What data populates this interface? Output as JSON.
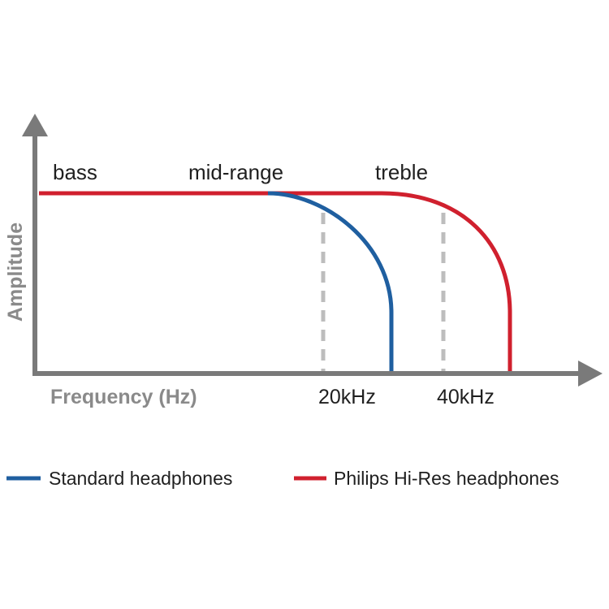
{
  "diagram": {
    "y_axis_label": "Amplitude",
    "x_axis_label": "Frequency (Hz)",
    "bands": {
      "bass": "bass",
      "mid": "mid-range",
      "treble": "treble"
    },
    "ticks": {
      "t20": "20kHz",
      "t40": "40kHz"
    },
    "colors": {
      "axis": "#7a7a7a",
      "dashed": "#bdbdbd",
      "standard": "#1f5fa0",
      "hires": "#d0202e"
    }
  },
  "legend": {
    "standard": "Standard headphones",
    "hires": "Philips Hi-Res headphones"
  }
}
